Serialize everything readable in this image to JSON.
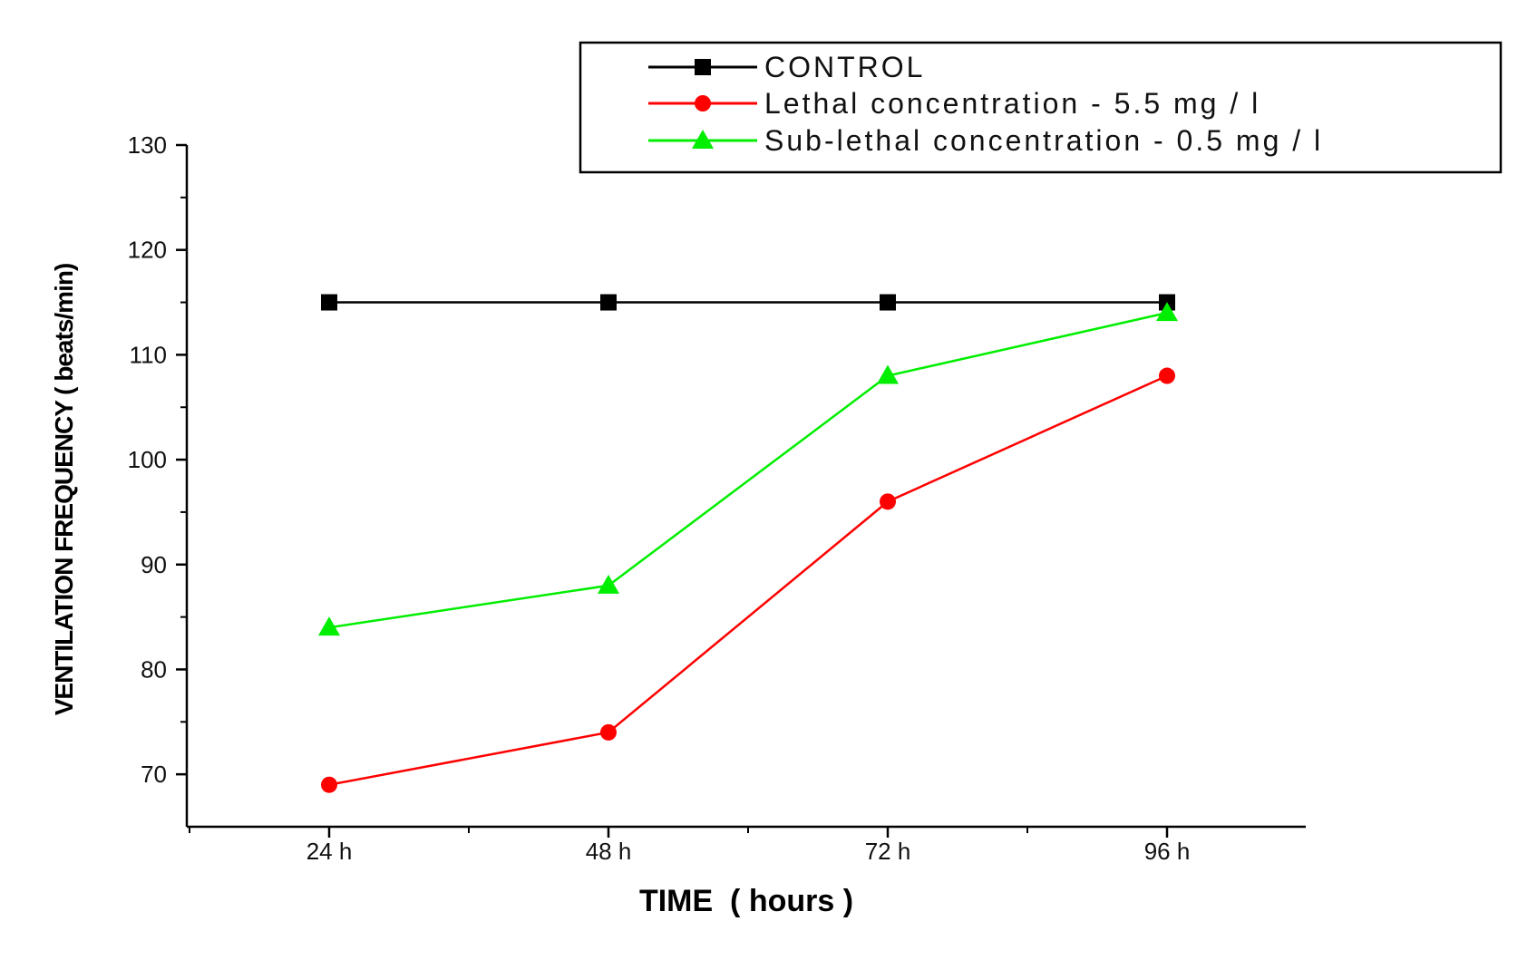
{
  "chart_data": {
    "type": "line",
    "title": "",
    "xlabel": "TIME  ( hours )",
    "ylabel": "VENTILATION FREQUENCY ( beats/min)",
    "categories": [
      "24 h",
      "48 h",
      "72 h",
      "96 h"
    ],
    "ylim": [
      65,
      130
    ],
    "yticks": [
      70,
      80,
      90,
      100,
      110,
      120,
      130
    ],
    "grid": false,
    "legend_position": "top-right",
    "series": [
      {
        "name": "CONTROL",
        "color": "#000000",
        "marker": "square",
        "values": [
          115,
          115,
          115,
          115
        ]
      },
      {
        "name": "Lethal concentration - 5.5  mg / l",
        "color": "#ff0000",
        "marker": "circle",
        "values": [
          69,
          74,
          96,
          108
        ]
      },
      {
        "name": "Sub-lethal concentration - 0.5  mg / l",
        "color": "#00ee00",
        "marker": "triangle",
        "values": [
          84,
          88,
          108,
          114
        ]
      }
    ]
  }
}
